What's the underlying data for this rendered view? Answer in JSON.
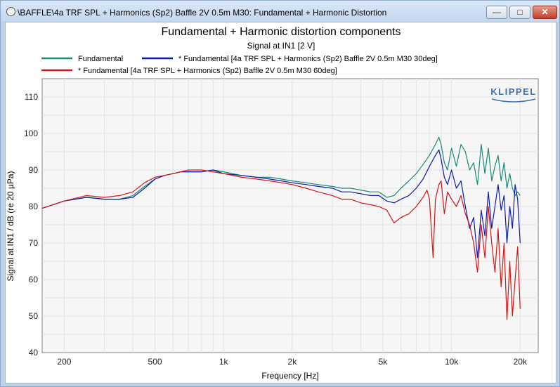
{
  "window": {
    "title": "\\BAFFLE\\4a TRF SPL + Harmonics (Sp2) Baffle 2V 0.5m M30: Fundamental + Harmonic Distortion",
    "buttons": {
      "minimize": "—",
      "maximize": "□",
      "close": "✕"
    }
  },
  "logo": "KLIPPEL",
  "colors": {
    "teal": "#1a8a78",
    "blue": "#0d1aa8",
    "red": "#d41616",
    "grid": "#e2e2e2",
    "plot_bg": "#f6f6f6",
    "logo": "#3d6fb5"
  },
  "chart_data": {
    "type": "line",
    "title": "Fundamental + Harmonic distortion components",
    "subtitle": "Signal at IN1 [2 V]",
    "xlabel": "Frequency [Hz]",
    "ylabel": "Signal at IN1 / dB (re 20 µPa)",
    "xscale": "log",
    "xlim": [
      160,
      24000
    ],
    "ylim": [
      40,
      115
    ],
    "grid": true,
    "xtick_values": [
      200,
      500,
      1000,
      2000,
      5000,
      10000,
      20000
    ],
    "xtick_labels": [
      "200",
      "500",
      "1k",
      "2k",
      "5k",
      "10k",
      "20k"
    ],
    "ytick_values": [
      40,
      50,
      60,
      70,
      80,
      90,
      100,
      110
    ],
    "ytick_labels": [
      "40",
      "50",
      "60",
      "70",
      "80",
      "90",
      "100",
      "110"
    ],
    "legend_position": "top",
    "series": [
      {
        "name": "Fundamental",
        "color": "#1a8a78",
        "x": [
          160,
          200,
          250,
          300,
          350,
          400,
          450,
          500,
          550,
          600,
          650,
          700,
          800,
          900,
          1000,
          1200,
          1400,
          1600,
          1800,
          2000,
          2300,
          2600,
          3000,
          3300,
          3600,
          4000,
          4400,
          4800,
          5200,
          5600,
          6000,
          6500,
          7000,
          7500,
          8000,
          8500,
          8800,
          9000,
          9300,
          9600,
          10000,
          10500,
          11000,
          11500,
          12000,
          12500,
          13000,
          13500,
          14000,
          14500,
          15000,
          15500,
          16000,
          16500,
          17000,
          17500,
          18000,
          18500,
          19000,
          19500,
          20000
        ],
        "y": [
          79.5,
          81.5,
          82.5,
          82,
          82,
          83,
          85.5,
          87.5,
          88.5,
          89,
          89.5,
          89.5,
          89.5,
          90,
          89.5,
          88.5,
          88,
          88,
          87.5,
          87,
          86.5,
          86,
          85.5,
          85,
          85,
          84.5,
          84,
          84,
          82.5,
          83,
          85,
          87,
          89,
          91.5,
          94,
          97,
          99,
          97,
          92,
          90,
          96,
          91,
          97,
          95,
          90,
          92,
          86,
          97,
          89,
          96,
          87,
          91,
          94,
          87,
          92,
          85,
          89,
          85,
          83,
          84,
          83
        ]
      },
      {
        "name": "* Fundamental [4a TRF SPL + Harmonics (Sp2) Baffle 2V 0.5m M30 30deg]",
        "color": "#0d1aa8",
        "x": [
          160,
          200,
          250,
          300,
          350,
          400,
          450,
          500,
          550,
          600,
          650,
          700,
          800,
          900,
          1000,
          1200,
          1400,
          1600,
          1800,
          2000,
          2300,
          2600,
          3000,
          3300,
          3600,
          4000,
          4400,
          4800,
          5200,
          5600,
          6000,
          6500,
          7000,
          7500,
          8000,
          8500,
          8800,
          9000,
          9300,
          9600,
          10000,
          10500,
          11000,
          11500,
          12000,
          12500,
          13000,
          13500,
          14000,
          14500,
          15000,
          15500,
          16000,
          16500,
          17000,
          17500,
          18000,
          18500,
          19000,
          19500,
          20000
        ],
        "y": [
          79.5,
          81.5,
          82.5,
          82,
          82,
          82.5,
          85,
          87.5,
          88.5,
          89,
          89.5,
          89.5,
          89.5,
          90,
          89,
          88.5,
          88,
          87.5,
          87,
          86.5,
          86,
          85.5,
          85,
          84,
          84,
          83.5,
          83,
          83,
          81.5,
          81,
          82,
          83,
          85,
          87.5,
          91,
          94,
          95.5,
          93,
          88,
          86,
          90,
          85,
          87,
          80,
          74,
          77,
          66,
          79,
          72,
          84,
          74,
          80,
          86,
          79,
          83,
          70,
          80,
          74,
          86,
          82,
          70
        ]
      },
      {
        "name": "* Fundamental [4a TRF SPL + Harmonics (Sp2) Baffle 2V 0.5m M30 60deg]",
        "color": "#d41616",
        "x": [
          160,
          200,
          250,
          300,
          350,
          400,
          450,
          500,
          550,
          600,
          650,
          700,
          800,
          900,
          1000,
          1200,
          1400,
          1600,
          1800,
          2000,
          2300,
          2600,
          3000,
          3300,
          3600,
          4000,
          4400,
          4800,
          5200,
          5600,
          6000,
          6500,
          7000,
          7500,
          7800,
          8000,
          8300,
          8500,
          8800,
          9000,
          9300,
          9600,
          10000,
          10500,
          11000,
          11500,
          12000,
          12500,
          13000,
          13500,
          14000,
          14500,
          15000,
          15500,
          16000,
          16500,
          17000,
          17500,
          18000,
          18500,
          19000,
          19500,
          20000
        ],
        "y": [
          79.5,
          81.5,
          83,
          82.5,
          83,
          84,
          86.5,
          88,
          88.5,
          89,
          89.5,
          90,
          90,
          89.5,
          89,
          88,
          87.5,
          87,
          86.5,
          86,
          85,
          84,
          83,
          82,
          82,
          81,
          80.5,
          80,
          79,
          75.5,
          77,
          78,
          80,
          82.5,
          84.5,
          82,
          66,
          82,
          86,
          87,
          78,
          84,
          82,
          80,
          83,
          78,
          75,
          70,
          62,
          75,
          66,
          80,
          70,
          62,
          74,
          58,
          70,
          49,
          65,
          50,
          60,
          69,
          52
        ]
      }
    ]
  }
}
